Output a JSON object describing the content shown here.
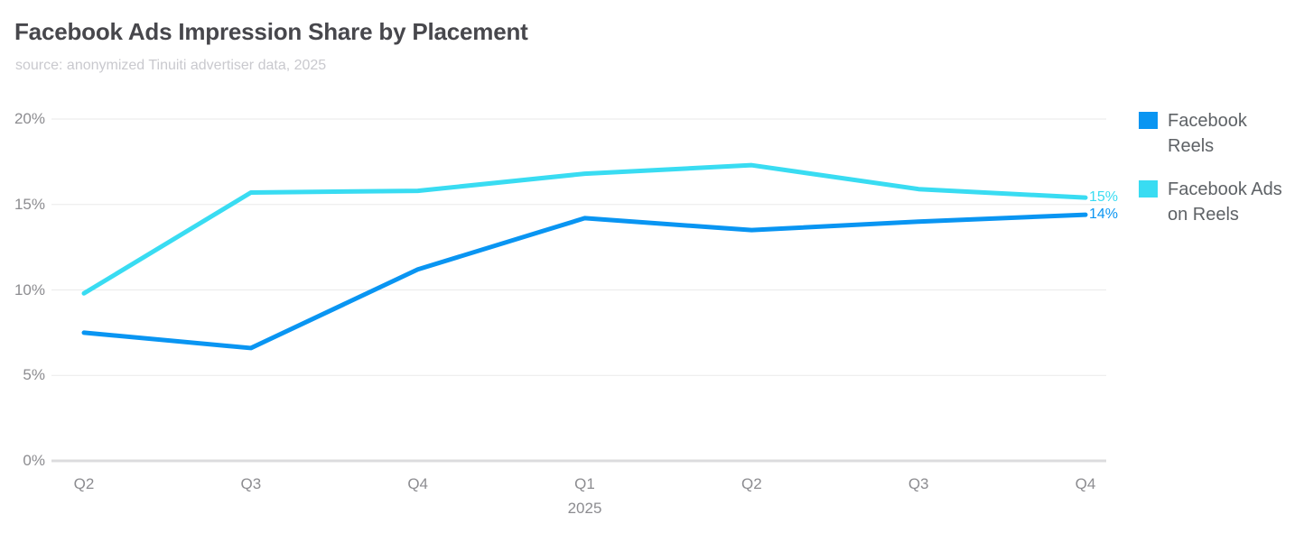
{
  "header": {
    "title": "Facebook Ads Impression Share by Placement",
    "subtitle": "source: anonymized Tinuiti advertiser data, 2025"
  },
  "chart_data": {
    "type": "line",
    "title": "Facebook Ads Impression Share by Placement",
    "categories": [
      "Q2",
      "Q3",
      "Q4",
      "Q1",
      "Q2",
      "Q3",
      "Q4"
    ],
    "x_sub_label": {
      "index": 3,
      "text": "2025"
    },
    "series": [
      {
        "name": "Facebook Reels",
        "color": "#0995F2",
        "values": [
          7.5,
          6.6,
          11.2,
          14.2,
          13.5,
          14.0,
          14.4
        ],
        "end_label": "14%"
      },
      {
        "name": "Facebook Ads on Reels",
        "color": "#39DCF2",
        "values": [
          9.8,
          15.7,
          15.8,
          16.8,
          17.3,
          15.9,
          15.4
        ],
        "end_label": "15%"
      }
    ],
    "ylim": [
      0,
      20
    ],
    "y_ticks": [
      {
        "value": 0,
        "label": "0%"
      },
      {
        "value": 5,
        "label": "5%"
      },
      {
        "value": 10,
        "label": "10%"
      },
      {
        "value": 15,
        "label": "15%"
      },
      {
        "value": 20,
        "label": "20%"
      }
    ],
    "grid": true,
    "legend_position": "right",
    "grid_color": "#eaeaea",
    "axis_line_color": "#dcdcde"
  },
  "legend": {
    "items": [
      {
        "lines": [
          "Facebook",
          "Reels"
        ],
        "color": "#0995F2"
      },
      {
        "lines": [
          "Facebook Ads",
          "on Reels"
        ],
        "color": "#39DCF2"
      }
    ]
  }
}
